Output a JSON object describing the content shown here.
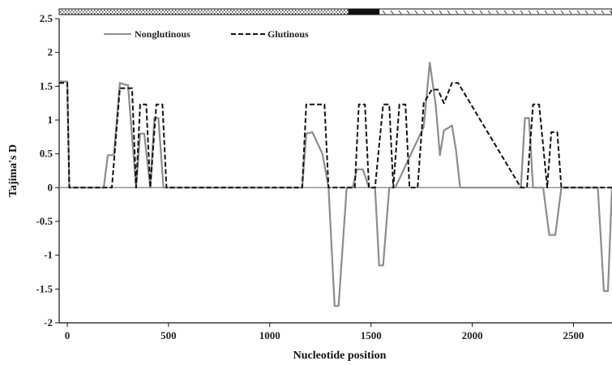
{
  "chart_data": {
    "type": "line",
    "title": "",
    "xlabel": "Nucleotide position",
    "ylabel": "Tajima's D",
    "xlim": [
      -40,
      2690
    ],
    "ylim": [
      -2,
      2.5
    ],
    "xticks": [
      0,
      500,
      1000,
      1500,
      2000,
      2500
    ],
    "yticks": [
      -2,
      -1.5,
      -1,
      -0.5,
      0,
      0.5,
      1,
      1.5,
      2,
      2.5
    ],
    "ytick_labels": [
      "-2",
      "-1.5",
      "-1",
      "-0.5",
      "0",
      "0.5",
      "1",
      "1.5",
      "2",
      "2.5"
    ],
    "grid": false,
    "legend_position": "top-left",
    "top_bar_segments": [
      {
        "start": -40,
        "end": 1390,
        "pattern": "dotted"
      },
      {
        "start": 1390,
        "end": 1540,
        "pattern": "solid"
      },
      {
        "start": 1540,
        "end": 2690,
        "pattern": "hatched"
      }
    ],
    "series": [
      {
        "name": "Nonglutinous",
        "style": "solid",
        "color": "#8c8c8c",
        "x": [
          -40,
          0,
          10,
          180,
          200,
          230,
          260,
          290,
          300,
          340,
          360,
          380,
          410,
          430,
          450,
          475,
          500,
          1160,
          1180,
          1210,
          1260,
          1290,
          1320,
          1340,
          1380,
          1410,
          1430,
          1460,
          1490,
          1520,
          1540,
          1560,
          1590,
          1620,
          1760,
          1790,
          1820,
          1840,
          1860,
          1880,
          1900,
          1920,
          1940,
          1950,
          2240,
          2260,
          2280,
          2300,
          2330,
          2350,
          2380,
          2410,
          2440,
          2600,
          2620,
          2650,
          2670,
          2690
        ],
        "y": [
          1.57,
          1.57,
          0,
          0,
          0.48,
          0.48,
          1.55,
          1.52,
          1.52,
          0,
          0.8,
          0.8,
          0,
          1.03,
          1.03,
          0,
          0,
          0,
          0.8,
          0.82,
          0.5,
          0,
          -1.75,
          -1.75,
          0,
          0,
          0.27,
          0.27,
          0,
          0,
          -1.15,
          -1.15,
          0,
          0,
          0.9,
          1.85,
          1.2,
          0.48,
          0.85,
          0.88,
          0.92,
          0.55,
          0,
          0,
          0,
          1.03,
          1.03,
          0,
          0,
          0,
          -0.7,
          -0.7,
          0,
          0,
          0,
          -1.53,
          -1.53,
          0
        ]
      },
      {
        "name": "Glutinous",
        "style": "dashed",
        "color": "#111111",
        "x": [
          -40,
          0,
          10,
          200,
          220,
          260,
          300,
          320,
          340,
          360,
          390,
          410,
          440,
          470,
          490,
          1160,
          1180,
          1240,
          1270,
          1290,
          1420,
          1440,
          1470,
          1490,
          1520,
          1560,
          1590,
          1610,
          1640,
          1670,
          1690,
          1730,
          1760,
          1800,
          1830,
          1860,
          1900,
          1930,
          1950,
          2240,
          2270,
          2300,
          2330,
          2370,
          2390,
          2420,
          2440,
          2690
        ],
        "y": [
          1.55,
          1.55,
          0,
          0,
          0,
          1.47,
          1.47,
          1.47,
          0,
          1.23,
          1.23,
          0,
          1.23,
          1.23,
          0,
          0,
          1.23,
          1.23,
          1.23,
          0,
          0,
          1.23,
          1.23,
          0,
          0,
          1.23,
          1.23,
          0,
          1.23,
          1.23,
          0,
          0,
          1.25,
          1.45,
          1.45,
          1.25,
          1.55,
          1.55,
          1.45,
          0,
          0,
          1.23,
          1.23,
          0,
          0.82,
          0.82,
          0,
          0
        ]
      }
    ]
  }
}
